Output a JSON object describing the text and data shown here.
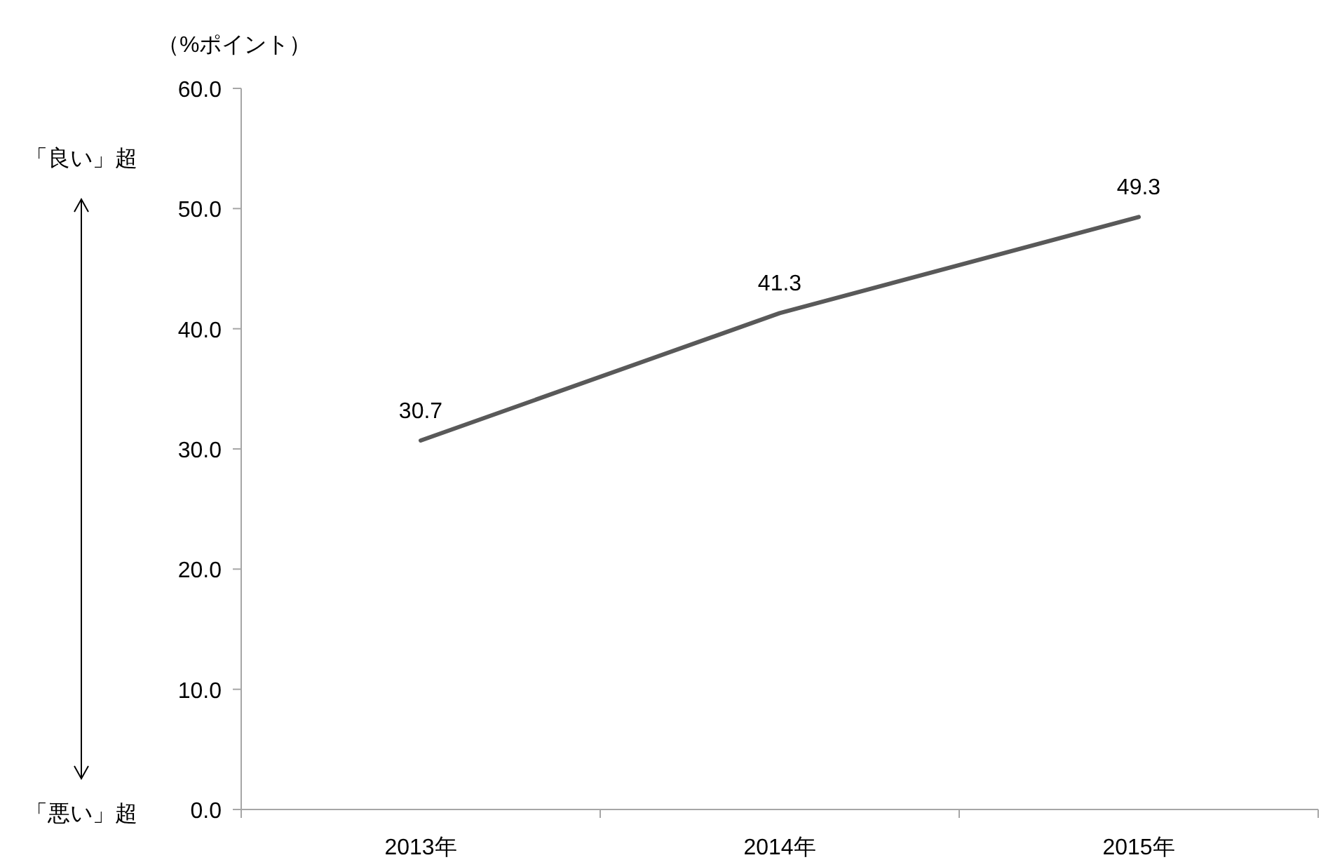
{
  "chart_data": {
    "type": "line",
    "ylabel": "（%ポイント）",
    "annotations": [
      "「良い」超",
      "「悪い」超"
    ],
    "categories": [
      "2013年",
      "2014年",
      "2015年"
    ],
    "series": [
      {
        "color": "#595959",
        "values": [
          30.7,
          41.3,
          49.3
        ]
      }
    ],
    "ylim": [
      0,
      60
    ],
    "yticks": [
      {
        "value": 0,
        "label": "0.0"
      },
      {
        "value": 10,
        "label": "10.0"
      },
      {
        "value": 20,
        "label": "20.0"
      },
      {
        "value": 30,
        "label": "30.0"
      },
      {
        "value": 40,
        "label": "40.0"
      },
      {
        "value": 50,
        "label": "50.0"
      },
      {
        "value": 60,
        "label": "60.0"
      }
    ],
    "data_labels": true,
    "grid": false
  }
}
